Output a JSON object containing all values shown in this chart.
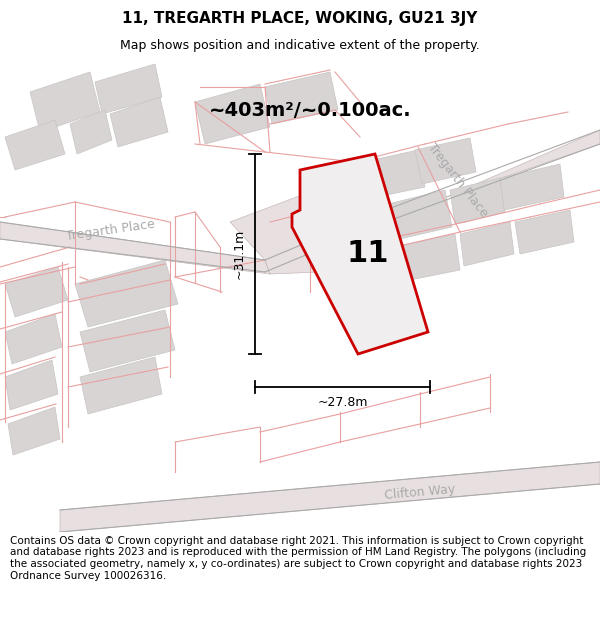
{
  "title": "11, TREGARTH PLACE, WOKING, GU21 3JY",
  "subtitle": "Map shows position and indicative extent of the property.",
  "area_text": "~403m²/~0.100ac.",
  "label_11": "11",
  "dim_width": "~27.8m",
  "dim_height": "~31.1m",
  "road_label_left": "Tregarth Place",
  "road_label_right": "Tregarth Place",
  "road_label_bottom": "Clifton Way",
  "footer_text": "Contains OS data © Crown copyright and database right 2021. This information is subject to Crown copyright and database rights 2023 and is reproduced with the permission of HM Land Registry. The polygons (including the associated geometry, namely x, y co-ordinates) are subject to Crown copyright and database rights 2023 Ordnance Survey 100026316.",
  "title_fontsize": 11,
  "subtitle_fontsize": 9,
  "footer_fontsize": 7.5,
  "area_fontsize": 14,
  "label_fontsize": 22,
  "road_label_fontsize": 9,
  "dim_fontsize": 9,
  "map_bg": "#f7f4f4",
  "road_fill": "#e8e0e0",
  "building_fill": "#d8d4d4",
  "building_edge": "#c8c4c4",
  "plot_line_color": "#e8a0a0",
  "road_edge_color": "#c8b8b8",
  "red_color": "#cc0000",
  "dim_color": "#000000",
  "road_label_color": "#aaaaaa",
  "title_bg": "#ffffff",
  "footer_bg": "#ffffff"
}
